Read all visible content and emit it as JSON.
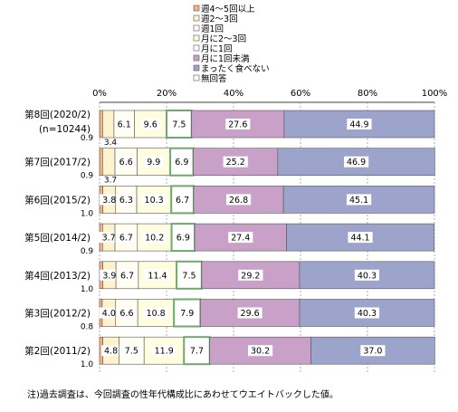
{
  "chart_data": {
    "type": "bar",
    "orientation": "horizontal-stacked-100",
    "x_tick_labels": [
      "0%",
      "20%",
      "40%",
      "60%",
      "80%",
      "100%"
    ],
    "xlim": [
      0,
      100
    ],
    "grid": true,
    "legend_placement": "top",
    "categories": [
      [
        "第8回(2020/2)",
        "(n=10244)"
      ],
      [
        "第7回(2017/2)"
      ],
      [
        "第6回(2015/2)"
      ],
      [
        "第5回(2014/2)"
      ],
      [
        "第4回(2013/2)"
      ],
      [
        "第3回(2012/2)"
      ],
      [
        "第2回(2011/2)"
      ]
    ],
    "series": [
      {
        "name": "週4～5回以上",
        "color": "#f4b183",
        "values": [
          0.9,
          0.9,
          1.0,
          0.9,
          1.0,
          0.8,
          1.0
        ]
      },
      {
        "name": "週2～3回",
        "color": "#fff2cc",
        "values": [
          3.4,
          3.7,
          3.8,
          3.7,
          3.9,
          4.0,
          4.8
        ]
      },
      {
        "name": "週1回",
        "color": "#fffef0",
        "values": [
          6.1,
          6.6,
          6.3,
          6.7,
          6.7,
          6.6,
          7.5
        ]
      },
      {
        "name": "月に2～3回",
        "color": "#fffde0",
        "values": [
          9.6,
          9.9,
          10.3,
          10.2,
          11.4,
          10.8,
          11.9
        ]
      },
      {
        "name": "月に1回",
        "color": "#ffffff",
        "values": [
          7.5,
          6.9,
          6.7,
          6.9,
          7.5,
          7.9,
          7.7
        ]
      },
      {
        "name": "月に1回未満",
        "color": "#c8a0c8",
        "values": [
          27.6,
          25.2,
          26.8,
          27.4,
          29.2,
          29.6,
          30.2
        ]
      },
      {
        "name": "まったく食べない",
        "color": "#9ca4cc",
        "values": [
          44.9,
          46.9,
          45.1,
          44.1,
          40.3,
          40.3,
          37.0
        ]
      },
      {
        "name": "無回答",
        "color": "#ffffff",
        "values": [
          0,
          0,
          0,
          0,
          0,
          0,
          0
        ]
      }
    ],
    "edge_labels": [
      "0.9",
      "0.9",
      "1.0",
      "0.9",
      "1.0",
      "0.8",
      "1.0"
    ],
    "below_labels": [
      "3.4",
      "3.7",
      "",
      "",
      "",
      "",
      ""
    ],
    "bar_labels": [
      [
        "",
        "",
        "6.1",
        "9.6",
        "7.5",
        "27.6",
        "44.9"
      ],
      [
        "",
        "",
        "6.6",
        "9.9",
        "6.9",
        "25.2",
        "46.9"
      ],
      [
        "",
        "3.8",
        "6.3",
        "10.3",
        "6.7",
        "26.8",
        "45.1"
      ],
      [
        "",
        "3.7",
        "6.7",
        "10.2",
        "6.9",
        "27.4",
        "44.1"
      ],
      [
        "",
        "3.9",
        "6.7",
        "11.4",
        "7.5",
        "29.2",
        "40.3"
      ],
      [
        "",
        "4.0",
        "6.6",
        "10.8",
        "7.9",
        "29.6",
        "40.3"
      ],
      [
        "",
        "4.8",
        "7.5",
        "11.9",
        "7.7",
        "30.2",
        "37.0"
      ]
    ],
    "note": "注)過去調査は、今回調査の性年代構成比にあわせてウエイトバックした値。"
  }
}
